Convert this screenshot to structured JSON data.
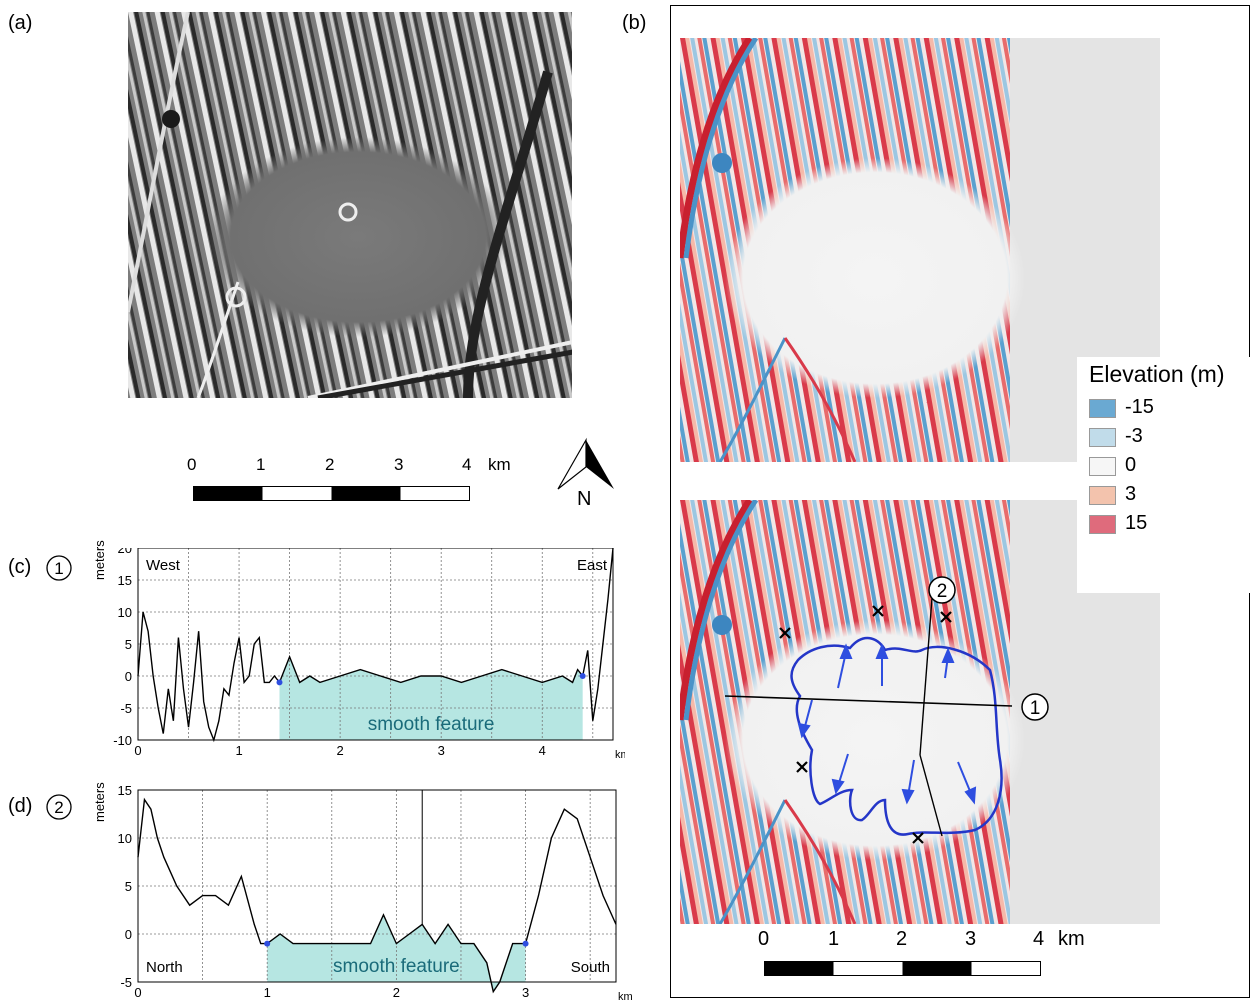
{
  "panel_a": {
    "label": "(a)",
    "scale": {
      "ticks": [
        "0",
        "1",
        "2",
        "3",
        "4"
      ],
      "unit": "km"
    },
    "north": "N"
  },
  "panel_b": {
    "label": "(b)",
    "legend": {
      "title": "Elevation (m)",
      "items": [
        {
          "label": "-15",
          "color": "#6aa9d2"
        },
        {
          "label": "-3",
          "color": "#c1dcea"
        },
        {
          "label": "0",
          "color": "#f6f6f6"
        },
        {
          "label": "3",
          "color": "#f3c3ad"
        },
        {
          "label": "15",
          "color": "#df6b7c"
        }
      ]
    },
    "profile_markers": [
      "1",
      "2"
    ],
    "scale": {
      "ticks": [
        "0",
        "1",
        "2",
        "3",
        "4"
      ],
      "unit": "km"
    }
  },
  "panel_c": {
    "label": "(c)",
    "circle": "1",
    "ylabel": "meters",
    "xlabel": "km",
    "left_label": "West",
    "right_label": "East",
    "fill_label": "smooth feature",
    "yticks": [
      "20",
      "15",
      "10",
      "5",
      "0",
      "-5",
      "-10"
    ],
    "xticks": [
      "0",
      "1",
      "2",
      "3",
      "4"
    ]
  },
  "panel_d": {
    "label": "(d)",
    "circle": "2",
    "ylabel": "meters",
    "xlabel": "km",
    "left_label": "North",
    "right_label": "South",
    "fill_label": "smooth feature",
    "yticks": [
      "15",
      "10",
      "5",
      "0",
      "-5"
    ],
    "xticks": [
      "0",
      "1",
      "2",
      "3"
    ]
  },
  "chart_data": [
    {
      "type": "line",
      "series": [
        {
          "x": [
            0,
            0.05,
            0.1,
            0.15,
            0.2,
            0.25,
            0.3,
            0.35,
            0.4,
            0.45,
            0.5,
            0.55,
            0.6,
            0.65,
            0.7,
            0.75,
            0.8,
            0.85,
            0.9,
            0.95,
            1.0,
            1.05,
            1.1,
            1.15,
            1.2,
            1.25,
            1.3,
            1.35,
            1.4,
            1.5,
            1.6,
            1.7,
            1.8,
            2.0,
            2.2,
            2.4,
            2.6,
            2.8,
            3.0,
            3.2,
            3.4,
            3.6,
            3.8,
            4.0,
            4.2,
            4.3,
            4.35,
            4.4,
            4.45,
            4.5,
            4.55,
            4.6,
            4.65,
            4.7
          ],
          "y": [
            0,
            10,
            7,
            0,
            -5,
            -9,
            -2,
            -7,
            6,
            -2,
            -8,
            -1,
            7,
            -4,
            -8,
            -10,
            -7,
            -2,
            -3,
            2,
            6,
            -1,
            0,
            5,
            6,
            -1,
            -1,
            0,
            -1,
            3,
            -1,
            0,
            -1,
            0,
            1,
            0,
            -1,
            0,
            0,
            -1,
            0,
            1,
            0,
            -1,
            0,
            -1,
            1,
            0,
            4,
            -7,
            -2,
            5,
            12,
            20
          ]
        }
      ],
      "fill_range": [
        1.4,
        4.4
      ],
      "xlim": [
        0,
        4.7
      ],
      "ylim": [
        -10,
        20
      ]
    },
    {
      "type": "line",
      "series": [
        {
          "x": [
            0,
            0.05,
            0.1,
            0.15,
            0.2,
            0.3,
            0.4,
            0.5,
            0.6,
            0.7,
            0.8,
            0.9,
            0.95,
            1.0,
            1.1,
            1.2,
            1.4,
            1.6,
            1.8,
            1.9,
            2.0,
            2.1,
            2.2,
            2.3,
            2.4,
            2.5,
            2.6,
            2.7,
            2.75,
            2.8,
            2.9,
            3.0,
            3.1,
            3.2,
            3.3,
            3.4,
            3.5,
            3.6,
            3.7
          ],
          "y": [
            8,
            14,
            13,
            10,
            8,
            5,
            3,
            4,
            4,
            3,
            6,
            1,
            -1,
            -1,
            0,
            -1,
            -1,
            -1,
            -1,
            2,
            -1,
            0,
            1,
            -1,
            1,
            -1,
            -1,
            -3,
            -6,
            -5,
            -1,
            -1,
            4,
            10,
            13,
            12,
            8,
            4,
            1
          ]
        }
      ],
      "fill_range": [
        1.0,
        3.0
      ],
      "xlim": [
        0,
        3.7
      ],
      "ylim": [
        -5,
        15
      ]
    }
  ]
}
